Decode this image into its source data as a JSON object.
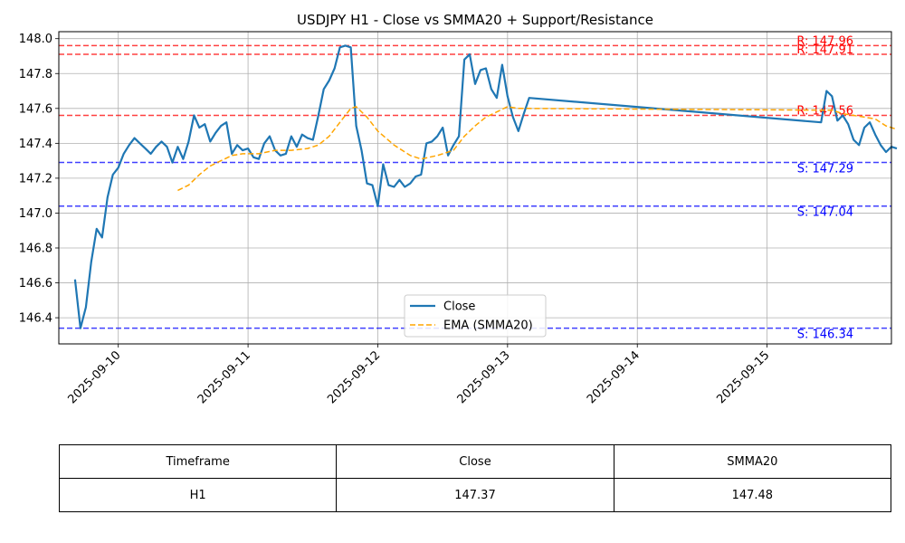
{
  "chart_data": {
    "type": "line",
    "title": "USDJPY H1 - Close vs SMMA20 + Support/Resistance",
    "xlabel": "",
    "ylabel": "",
    "xlim": [
      "2025-09-09 13:00",
      "2025-09-15 23:00"
    ],
    "ylim": [
      146.25,
      148.04
    ],
    "yticks": [
      "146.4",
      "146.6",
      "146.8",
      "147.0",
      "147.2",
      "147.4",
      "147.6",
      "147.8",
      "148.0"
    ],
    "xticks": [
      "2025-09-10",
      "2025-09-11",
      "2025-09-12",
      "2025-09-13",
      "2025-09-14",
      "2025-09-15"
    ],
    "grid": true,
    "legend": "lower-center",
    "series": [
      {
        "name": "Close",
        "color": "#1f77b4",
        "style": "solid",
        "points": [
          [
            "2025-09-09 16:00",
            146.62
          ],
          [
            "2025-09-09 17:00",
            146.34
          ],
          [
            "2025-09-09 18:00",
            146.46
          ],
          [
            "2025-09-09 19:00",
            146.72
          ],
          [
            "2025-09-09 20:00",
            146.91
          ],
          [
            "2025-09-09 21:00",
            146.86
          ],
          [
            "2025-09-09 22:00",
            147.09
          ],
          [
            "2025-09-09 23:00",
            147.22
          ],
          [
            "2025-09-10 00:00",
            147.26
          ],
          [
            "2025-09-10 01:00",
            147.34
          ],
          [
            "2025-09-10 02:00",
            147.39
          ],
          [
            "2025-09-10 03:00",
            147.43
          ],
          [
            "2025-09-10 04:00",
            147.4
          ],
          [
            "2025-09-10 05:00",
            147.37
          ],
          [
            "2025-09-10 06:00",
            147.34
          ],
          [
            "2025-09-10 07:00",
            147.38
          ],
          [
            "2025-09-10 08:00",
            147.41
          ],
          [
            "2025-09-10 09:00",
            147.38
          ],
          [
            "2025-09-10 10:00",
            147.29
          ],
          [
            "2025-09-10 11:00",
            147.38
          ],
          [
            "2025-09-10 12:00",
            147.31
          ],
          [
            "2025-09-10 13:00",
            147.41
          ],
          [
            "2025-09-10 14:00",
            147.56
          ],
          [
            "2025-09-10 15:00",
            147.49
          ],
          [
            "2025-09-10 16:00",
            147.51
          ],
          [
            "2025-09-10 17:00",
            147.41
          ],
          [
            "2025-09-10 18:00",
            147.46
          ],
          [
            "2025-09-10 19:00",
            147.5
          ],
          [
            "2025-09-10 20:00",
            147.52
          ],
          [
            "2025-09-10 21:00",
            147.34
          ],
          [
            "2025-09-10 22:00",
            147.39
          ],
          [
            "2025-09-10 23:00",
            147.36
          ],
          [
            "2025-09-11 00:00",
            147.37
          ],
          [
            "2025-09-11 01:00",
            147.32
          ],
          [
            "2025-09-11 02:00",
            147.31
          ],
          [
            "2025-09-11 03:00",
            147.4
          ],
          [
            "2025-09-11 04:00",
            147.44
          ],
          [
            "2025-09-11 05:00",
            147.36
          ],
          [
            "2025-09-11 06:00",
            147.33
          ],
          [
            "2025-09-11 07:00",
            147.34
          ],
          [
            "2025-09-11 08:00",
            147.44
          ],
          [
            "2025-09-11 09:00",
            147.38
          ],
          [
            "2025-09-11 10:00",
            147.45
          ],
          [
            "2025-09-11 11:00",
            147.43
          ],
          [
            "2025-09-11 12:00",
            147.42
          ],
          [
            "2025-09-11 13:00",
            147.56
          ],
          [
            "2025-09-11 14:00",
            147.71
          ],
          [
            "2025-09-11 15:00",
            147.76
          ],
          [
            "2025-09-11 16:00",
            147.83
          ],
          [
            "2025-09-11 17:00",
            147.95
          ],
          [
            "2025-09-11 18:00",
            147.96
          ],
          [
            "2025-09-11 19:00",
            147.95
          ],
          [
            "2025-09-11 20:00",
            147.5
          ],
          [
            "2025-09-11 21:00",
            147.36
          ],
          [
            "2025-09-11 22:00",
            147.17
          ],
          [
            "2025-09-11 23:00",
            147.16
          ],
          [
            "2025-09-12 00:00",
            147.04
          ],
          [
            "2025-09-12 01:00",
            147.28
          ],
          [
            "2025-09-12 02:00",
            147.16
          ],
          [
            "2025-09-12 03:00",
            147.15
          ],
          [
            "2025-09-12 04:00",
            147.19
          ],
          [
            "2025-09-12 05:00",
            147.15
          ],
          [
            "2025-09-12 06:00",
            147.17
          ],
          [
            "2025-09-12 07:00",
            147.21
          ],
          [
            "2025-09-12 08:00",
            147.22
          ],
          [
            "2025-09-12 09:00",
            147.4
          ],
          [
            "2025-09-12 10:00",
            147.41
          ],
          [
            "2025-09-12 11:00",
            147.44
          ],
          [
            "2025-09-12 12:00",
            147.49
          ],
          [
            "2025-09-12 13:00",
            147.33
          ],
          [
            "2025-09-12 14:00",
            147.39
          ],
          [
            "2025-09-12 15:00",
            147.44
          ],
          [
            "2025-09-12 16:00",
            147.88
          ],
          [
            "2025-09-12 17:00",
            147.91
          ],
          [
            "2025-09-12 18:00",
            147.74
          ],
          [
            "2025-09-12 19:00",
            147.82
          ],
          [
            "2025-09-12 20:00",
            147.83
          ],
          [
            "2025-09-12 21:00",
            147.71
          ],
          [
            "2025-09-12 22:00",
            147.66
          ],
          [
            "2025-09-12 23:00",
            147.85
          ],
          [
            "2025-09-13 00:00",
            147.67
          ],
          [
            "2025-09-13 01:00",
            147.55
          ],
          [
            "2025-09-13 02:00",
            147.47
          ],
          [
            "2025-09-13 03:00",
            147.57
          ],
          [
            "2025-09-13 04:00",
            147.66
          ],
          [
            "2025-09-15 10:00",
            147.52
          ],
          [
            "2025-09-15 11:00",
            147.7
          ],
          [
            "2025-09-15 12:00",
            147.67
          ],
          [
            "2025-09-15 13:00",
            147.53
          ],
          [
            "2025-09-15 14:00",
            147.56
          ],
          [
            "2025-09-15 15:00",
            147.51
          ],
          [
            "2025-09-15 16:00",
            147.42
          ],
          [
            "2025-09-15 17:00",
            147.39
          ],
          [
            "2025-09-15 18:00",
            147.49
          ],
          [
            "2025-09-15 19:00",
            147.52
          ],
          [
            "2025-09-15 20:00",
            147.45
          ],
          [
            "2025-09-15 21:00",
            147.39
          ],
          [
            "2025-09-15 22:00",
            147.35
          ],
          [
            "2025-09-15 23:00",
            147.38
          ],
          [
            "2025-09-16 00:00",
            147.37
          ]
        ]
      },
      {
        "name": "EMA (SMMA20)",
        "color": "#ffa500",
        "style": "dashed",
        "points": [
          [
            "2025-09-10 11:00",
            147.13
          ],
          [
            "2025-09-10 13:00",
            147.16
          ],
          [
            "2025-09-10 15:00",
            147.22
          ],
          [
            "2025-09-10 17:00",
            147.27
          ],
          [
            "2025-09-10 19:00",
            147.3
          ],
          [
            "2025-09-10 21:00",
            147.33
          ],
          [
            "2025-09-10 23:00",
            147.34
          ],
          [
            "2025-09-11 02:00",
            147.34
          ],
          [
            "2025-09-11 05:00",
            147.36
          ],
          [
            "2025-09-11 08:00",
            147.36
          ],
          [
            "2025-09-11 11:00",
            147.37
          ],
          [
            "2025-09-11 13:00",
            147.39
          ],
          [
            "2025-09-11 15:00",
            147.44
          ],
          [
            "2025-09-11 17:00",
            147.52
          ],
          [
            "2025-09-11 19:00",
            147.6
          ],
          [
            "2025-09-11 20:00",
            147.61
          ],
          [
            "2025-09-11 22:00",
            147.55
          ],
          [
            "2025-09-12 00:00",
            147.47
          ],
          [
            "2025-09-12 03:00",
            147.39
          ],
          [
            "2025-09-12 06:00",
            147.33
          ],
          [
            "2025-09-12 08:00",
            147.31
          ],
          [
            "2025-09-12 11:00",
            147.33
          ],
          [
            "2025-09-12 14:00",
            147.36
          ],
          [
            "2025-09-12 16:00",
            147.44
          ],
          [
            "2025-09-12 18:00",
            147.5
          ],
          [
            "2025-09-12 20:00",
            147.55
          ],
          [
            "2025-09-12 22:00",
            147.58
          ],
          [
            "2025-09-13 00:00",
            147.61
          ],
          [
            "2025-09-13 02:00",
            147.6
          ],
          [
            "2025-09-13 04:00",
            147.6
          ],
          [
            "2025-09-15 10:00",
            147.59
          ],
          [
            "2025-09-15 12:00",
            147.59
          ],
          [
            "2025-09-15 14:00",
            147.57
          ],
          [
            "2025-09-15 16:00",
            147.56
          ],
          [
            "2025-09-15 18:00",
            147.55
          ],
          [
            "2025-09-15 20:00",
            147.54
          ],
          [
            "2025-09-15 22:00",
            147.5
          ],
          [
            "2025-09-16 00:00",
            147.48
          ]
        ]
      }
    ],
    "levels": [
      {
        "kind": "resistance",
        "value": 147.96,
        "label": "R: 147.96",
        "color": "#ff0000"
      },
      {
        "kind": "resistance",
        "value": 147.91,
        "label": "R: 147.91",
        "color": "#ff0000"
      },
      {
        "kind": "resistance",
        "value": 147.56,
        "label": "R: 147.56",
        "color": "#ff0000"
      },
      {
        "kind": "support",
        "value": 147.29,
        "label": "S: 147.29",
        "color": "#0000ff"
      },
      {
        "kind": "support",
        "value": 147.04,
        "label": "S: 147.04",
        "color": "#0000ff"
      },
      {
        "kind": "support",
        "value": 146.34,
        "label": "S: 146.34",
        "color": "#0000ff"
      }
    ]
  },
  "table": {
    "headers": [
      "Timeframe",
      "Close",
      "SMMA20"
    ],
    "rows": [
      [
        "H1",
        "147.37",
        "147.48"
      ]
    ]
  }
}
